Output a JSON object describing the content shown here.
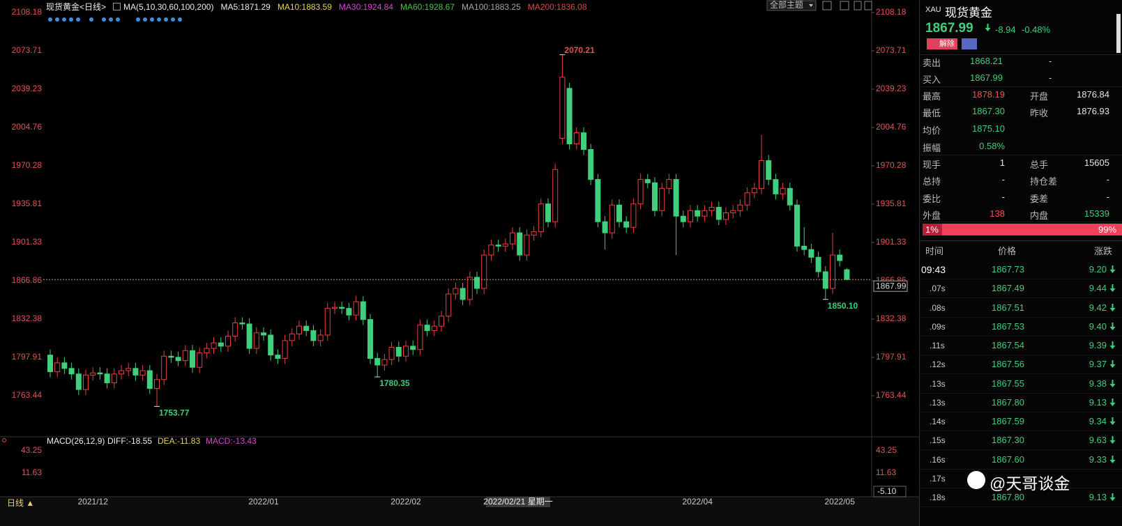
{
  "header": {
    "title": "现货黄金<日线>",
    "indicator": "MA(5,10,30,60,100,200)",
    "ma_labels": [
      {
        "text": "MA5:1871.29",
        "color": "#f0f0f0"
      },
      {
        "text": "MA10:1883.59",
        "color": "#e8d35a"
      },
      {
        "text": "MA30:1924.84",
        "color": "#d944d9"
      },
      {
        "text": "MA60:1928.67",
        "color": "#45c845"
      },
      {
        "text": "MA100:1883.25",
        "color": "#a8a8a8"
      },
      {
        "text": "MA200:1836.08",
        "color": "#e04545"
      }
    ],
    "theme_button": "全部主题"
  },
  "chart_data": {
    "type": "candlestick",
    "categories": [
      null,
      null,
      null,
      null,
      null,
      null,
      "2021/12",
      null,
      null,
      null,
      null,
      null,
      null,
      null,
      null,
      null,
      null,
      null,
      null,
      null,
      null,
      null,
      null,
      null,
      null,
      null,
      null,
      null,
      null,
      null,
      "2022/01",
      null,
      null,
      null,
      null,
      null,
      null,
      null,
      null,
      null,
      null,
      null,
      null,
      null,
      null,
      null,
      null,
      null,
      null,
      null,
      "2022/02",
      null,
      null,
      null,
      null,
      null,
      null,
      null,
      null,
      null,
      null,
      null,
      null,
      null,
      null,
      null,
      null,
      null,
      null,
      null,
      null,
      null,
      null,
      null,
      null,
      null,
      null,
      null,
      null,
      null,
      null,
      null,
      null,
      null,
      null,
      null,
      null,
      null,
      null,
      null,
      null,
      "2022/04",
      null,
      null,
      null,
      null,
      null,
      null,
      null,
      null,
      null,
      null,
      null,
      null,
      null,
      null,
      null,
      null,
      null,
      null,
      null,
      "2022/05",
      null
    ],
    "candles": [
      [
        1800,
        1805,
        1780,
        1785
      ],
      [
        1785,
        1798,
        1780,
        1793
      ],
      [
        1793,
        1798,
        1783,
        1788
      ],
      [
        1788,
        1793,
        1778,
        1783
      ],
      [
        1783,
        1788,
        1764,
        1769
      ],
      [
        1769,
        1787,
        1764,
        1782
      ],
      [
        1782,
        1789,
        1777,
        1784
      ],
      [
        1784,
        1789,
        1778,
        1783
      ],
      [
        1783,
        1788,
        1770,
        1775
      ],
      [
        1775,
        1788,
        1770,
        1783
      ],
      [
        1783,
        1791,
        1778,
        1786
      ],
      [
        1786,
        1793,
        1781,
        1788
      ],
      [
        1788,
        1793,
        1777,
        1782
      ],
      [
        1782,
        1791,
        1777,
        1786
      ],
      [
        1786,
        1791,
        1765,
        1770
      ],
      [
        1770,
        1783,
        1753.77,
        1778
      ],
      [
        1778,
        1804,
        1773,
        1799
      ],
      [
        1799,
        1804,
        1793,
        1798
      ],
      [
        1798,
        1803,
        1790,
        1795
      ],
      [
        1795,
        1809,
        1790,
        1804
      ],
      [
        1804,
        1809,
        1784,
        1789
      ],
      [
        1789,
        1807,
        1784,
        1802
      ],
      [
        1802,
        1811,
        1797,
        1806
      ],
      [
        1806,
        1816,
        1801,
        1811
      ],
      [
        1811,
        1816,
        1803,
        1808
      ],
      [
        1808,
        1822,
        1803,
        1817
      ],
      [
        1817,
        1834,
        1812,
        1829
      ],
      [
        1829,
        1834,
        1823,
        1828
      ],
      [
        1828,
        1833,
        1801,
        1806
      ],
      [
        1806,
        1825,
        1801,
        1820
      ],
      [
        1820,
        1825,
        1813,
        1818
      ],
      [
        1818,
        1823,
        1795,
        1800
      ],
      [
        1800,
        1805,
        1792,
        1797
      ],
      [
        1797,
        1818,
        1792,
        1813
      ],
      [
        1813,
        1824,
        1808,
        1819
      ],
      [
        1819,
        1831,
        1814,
        1826
      ],
      [
        1826,
        1831,
        1817,
        1822
      ],
      [
        1822,
        1827,
        1808,
        1813
      ],
      [
        1813,
        1823,
        1808,
        1818
      ],
      [
        1818,
        1847,
        1813,
        1842
      ],
      [
        1842,
        1848,
        1837,
        1843
      ],
      [
        1843,
        1848,
        1837,
        1842
      ],
      [
        1842,
        1847,
        1831,
        1836
      ],
      [
        1836,
        1853,
        1831,
        1848
      ],
      [
        1848,
        1853,
        1827,
        1832
      ],
      [
        1832,
        1837,
        1792,
        1797
      ],
      [
        1797,
        1802,
        1780.35,
        1791
      ],
      [
        1791,
        1801,
        1786,
        1796
      ],
      [
        1796,
        1812,
        1791,
        1807
      ],
      [
        1807,
        1812,
        1794,
        1799
      ],
      [
        1799,
        1813,
        1794,
        1808
      ],
      [
        1808,
        1813,
        1800,
        1805
      ],
      [
        1805,
        1832,
        1800,
        1827
      ],
      [
        1827,
        1832,
        1817,
        1822
      ],
      [
        1822,
        1831,
        1817,
        1826
      ],
      [
        1826,
        1840,
        1821,
        1835
      ],
      [
        1835,
        1860,
        1830,
        1855
      ],
      [
        1855,
        1865,
        1850,
        1860
      ],
      [
        1860,
        1865,
        1845,
        1850
      ],
      [
        1850,
        1875,
        1845,
        1870
      ],
      [
        1870,
        1875,
        1855,
        1860
      ],
      [
        1860,
        1895,
        1855,
        1890
      ],
      [
        1890,
        1904,
        1885,
        1899
      ],
      [
        1899,
        1904,
        1893,
        1898
      ],
      [
        1898,
        1905,
        1893,
        1900
      ],
      [
        1900,
        1915,
        1895,
        1910
      ],
      [
        1910,
        1915,
        1885,
        1890
      ],
      [
        1890,
        1913,
        1885,
        1908
      ],
      [
        1908,
        1916,
        1903,
        1911
      ],
      [
        1911,
        1941,
        1906,
        1936
      ],
      [
        1936,
        1941,
        1915,
        1920
      ],
      [
        1920,
        1972,
        1915,
        1967
      ],
      [
        1995,
        2070.21,
        1990,
        2050
      ],
      [
        2040,
        2045,
        1985,
        1990
      ],
      [
        1990,
        2005,
        1985,
        2000
      ],
      [
        2000,
        2005,
        1980,
        1985
      ],
      [
        1985,
        1990,
        1953,
        1958
      ],
      [
        1958,
        1963,
        1915,
        1920
      ],
      [
        1920,
        1925,
        1895,
        1910
      ],
      [
        1910,
        1940,
        1905,
        1935
      ],
      [
        1935,
        1940,
        1915,
        1920
      ],
      [
        1920,
        1925,
        1910,
        1915
      ],
      [
        1915,
        1941,
        1910,
        1936
      ],
      [
        1936,
        1963,
        1931,
        1958
      ],
      [
        1958,
        1963,
        1950,
        1955
      ],
      [
        1955,
        1960,
        1925,
        1930
      ],
      [
        1930,
        1955,
        1925,
        1950
      ],
      [
        1950,
        1963,
        1945,
        1958
      ],
      [
        1958,
        1963,
        1890,
        1925
      ],
      [
        1925,
        1930,
        1915,
        1920
      ],
      [
        1920,
        1935,
        1915,
        1930
      ],
      [
        1930,
        1935,
        1920,
        1925
      ],
      [
        1925,
        1935,
        1920,
        1930
      ],
      [
        1930,
        1938,
        1925,
        1933
      ],
      [
        1933,
        1938,
        1917,
        1922
      ],
      [
        1922,
        1933,
        1917,
        1928
      ],
      [
        1928,
        1935,
        1923,
        1930
      ],
      [
        1930,
        1940,
        1925,
        1935
      ],
      [
        1935,
        1951,
        1930,
        1946
      ],
      [
        1946,
        1955,
        1941,
        1950
      ],
      [
        1950,
        1998,
        1945,
        1975
      ],
      [
        1975,
        1980,
        1953,
        1958
      ],
      [
        1958,
        1963,
        1940,
        1945
      ],
      [
        1945,
        1955,
        1940,
        1950
      ],
      [
        1950,
        1955,
        1930,
        1935
      ],
      [
        1935,
        1940,
        1893,
        1898
      ],
      [
        1898,
        1915,
        1890,
        1895
      ],
      [
        1895,
        1900,
        1883,
        1888
      ],
      [
        1888,
        1893,
        1870,
        1875
      ],
      [
        1875,
        1880,
        1850.1,
        1860
      ],
      [
        1860,
        1910,
        1855,
        1890
      ],
      [
        1890,
        1895,
        1880,
        1885
      ],
      [
        1876.84,
        1878.19,
        1867.3,
        1867.99
      ]
    ],
    "ylim": [
      1727.7,
      2113.2
    ],
    "yticks": [
      1763.44,
      1797.91,
      1832.38,
      1866.86,
      1901.33,
      1935.81,
      1970.28,
      2004.76,
      2039.23,
      2073.71,
      2108.18
    ],
    "up_color": "#e8413f",
    "down_color": "#3fcf7d",
    "tick_color": "#e05555",
    "annotations": [
      "2070.21",
      "1753.77",
      "1780.35",
      "1850.10"
    ],
    "crosshair_label": "2022/02/21 星期一"
  },
  "macd": {
    "title": "MACD(26,12,9)",
    "diff": "DIFF:-18.55",
    "dea": "DEA:-11.83",
    "macd": "MACD:-13.43",
    "axis_labels": [
      "43.25",
      "11.63",
      "-5.10"
    ]
  },
  "footer": {
    "period": "日线 ▲"
  },
  "quote": {
    "code": "XAU",
    "name": "现货黄金",
    "price": "1867.99",
    "change": "-8.94",
    "change_pct": "-0.48%",
    "button": "解除",
    "rows": [
      [
        "卖出",
        "1868.21",
        "-"
      ],
      [
        "买入",
        "1867.99",
        "-"
      ],
      [
        "最高",
        "1878.19",
        "开盘",
        "1876.84"
      ],
      [
        "最低",
        "1867.30",
        "昨收",
        "1876.93"
      ],
      [
        "均价",
        "1875.10"
      ],
      [
        "振幅",
        "0.58%"
      ],
      [
        "现手",
        "1",
        "总手",
        "15605"
      ],
      [
        "总持",
        "-",
        "持仓差",
        "-"
      ],
      [
        "委比",
        "-",
        "委差",
        "-"
      ],
      [
        "外盘",
        "138",
        "内盘",
        "15339"
      ]
    ],
    "ratio": [
      "1%",
      "99%"
    ]
  },
  "ticks_table": {
    "headers": [
      "时间",
      "价格",
      "涨跌"
    ],
    "rows": [
      [
        "09:43",
        "1867.73",
        "9.20"
      ],
      [
        ".07s",
        "1867.49",
        "9.44"
      ],
      [
        ".08s",
        "1867.51",
        "9.42"
      ],
      [
        ".09s",
        "1867.53",
        "9.40"
      ],
      [
        ".11s",
        "1867.54",
        "9.39"
      ],
      [
        ".12s",
        "1867.56",
        "9.37"
      ],
      [
        ".13s",
        "1867.55",
        "9.38"
      ],
      [
        ".13s",
        "1867.80",
        "9.13"
      ],
      [
        ".14s",
        "1867.59",
        "9.34"
      ],
      [
        ".15s",
        "1867.30",
        "9.63"
      ],
      [
        ".16s",
        "1867.60",
        "9.33"
      ],
      [
        ".17s"
      ],
      [
        ".18s",
        "1867.80",
        "9.13"
      ]
    ]
  },
  "watermark": "@天哥谈金"
}
